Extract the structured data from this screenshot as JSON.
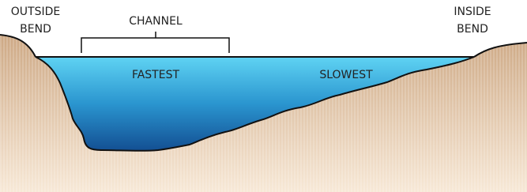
{
  "labels": {
    "outside_bend": [
      "OUTSIDE",
      "BEND"
    ],
    "channel": "CHANNEL",
    "fastest": "FASTEST",
    "slowest": "SLOWEST",
    "inside_bend": [
      "INSIDE",
      "BEND"
    ]
  }
}
